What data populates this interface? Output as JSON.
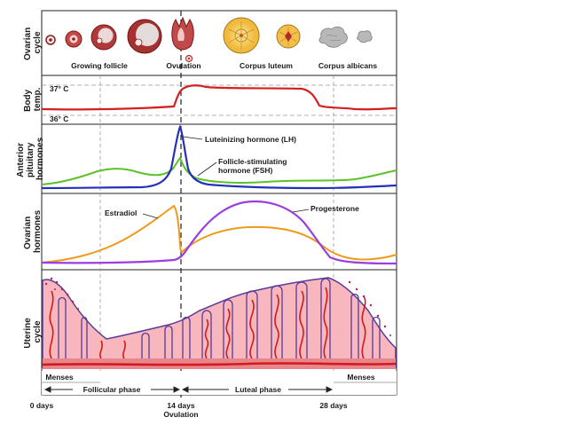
{
  "row_labels": {
    "ovarian_cycle": [
      "Ovarian",
      "cycle"
    ],
    "body_temp": [
      "Body",
      "temp."
    ],
    "pituitary": [
      "Anterior",
      "pituitary",
      "hormones"
    ],
    "ovarian_hormones": [
      "Ovarian",
      "hormones"
    ],
    "uterine_cycle": [
      "Uterine",
      "cycle"
    ]
  },
  "ovary_stages": {
    "growing_follicle": "Growing follicle",
    "ovulation": "Ovulation",
    "corpus_luteum": "Corpus luteum",
    "corpus_albicans": "Corpus albicans"
  },
  "temperature": {
    "high": "37° C",
    "low": "36° C"
  },
  "hormones": {
    "lh": "Luteinizing hormone (LH)",
    "fsh_line1": "Follicle-stimulating",
    "fsh_line2": "hormone (FSH)",
    "estradiol": "Estradiol",
    "progesterone": "Progesterone"
  },
  "phases": {
    "menses_start": "Menses",
    "menses_end": "Menses",
    "follicular": "Follicular phase",
    "luteal": "Luteal phase"
  },
  "axis": {
    "day0": "0 days",
    "day14": "14 days",
    "day14_sub": "Ovulation",
    "day28": "28 days"
  },
  "colors": {
    "temperature": "#d42020",
    "lh": "#2530b8",
    "fsh": "#5cc12a",
    "estradiol": "#ee9a1a",
    "progesterone": "#9a3ee0",
    "endometrium_fill": "#f7b7bd",
    "endometrium_outline": "#5a3a9a",
    "vessel": "#d31a1a",
    "luteum": "#f3c24a"
  }
}
